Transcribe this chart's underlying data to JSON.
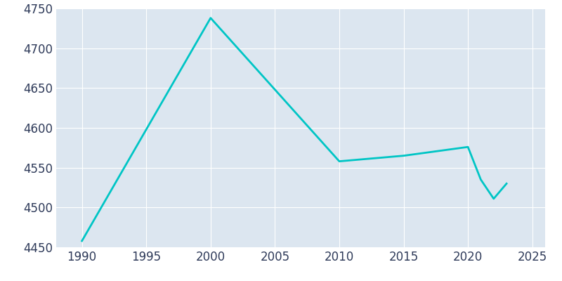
{
  "years": [
    1990,
    2000,
    2010,
    2015,
    2020,
    2021,
    2022,
    2023
  ],
  "population": [
    4458,
    4738,
    4558,
    4565,
    4576,
    4535,
    4511,
    4530
  ],
  "line_color": "#00C5C5",
  "fig_bg_color": "#ffffff",
  "axis_bg_color": "#dce6f0",
  "grid_color": "#ffffff",
  "tick_label_color": "#2e3a59",
  "xlim": [
    1988,
    2026
  ],
  "ylim": [
    4450,
    4750
  ],
  "yticks": [
    4450,
    4500,
    4550,
    4600,
    4650,
    4700,
    4750
  ],
  "xticks": [
    1990,
    1995,
    2000,
    2005,
    2010,
    2015,
    2020,
    2025
  ],
  "linewidth": 2.0,
  "figsize": [
    8.0,
    4.0
  ],
  "dpi": 100,
  "label_fontsize": 12
}
